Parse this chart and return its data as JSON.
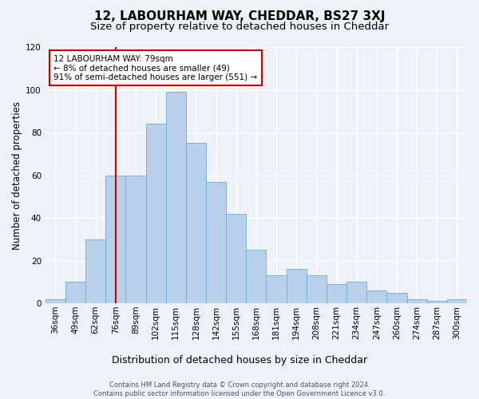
{
  "title": "12, LABOURHAM WAY, CHEDDAR, BS27 3XJ",
  "subtitle": "Size of property relative to detached houses in Cheddar",
  "xlabel_bottom": "Distribution of detached houses by size in Cheddar",
  "ylabel": "Number of detached properties",
  "categories": [
    "36sqm",
    "49sqm",
    "62sqm",
    "76sqm",
    "89sqm",
    "102sqm",
    "115sqm",
    "128sqm",
    "142sqm",
    "155sqm",
    "168sqm",
    "181sqm",
    "194sqm",
    "208sqm",
    "221sqm",
    "234sqm",
    "247sqm",
    "260sqm",
    "274sqm",
    "287sqm",
    "300sqm"
  ],
  "bar_heights": [
    2,
    10,
    30,
    60,
    60,
    84,
    99,
    75,
    57,
    42,
    25,
    13,
    16,
    13,
    9,
    10,
    6,
    5,
    2,
    1,
    2
  ],
  "bar_color": "#b8d0ea",
  "bar_edge_color": "#6aaed6",
  "vline_index": 3,
  "vline_color": "#cc0000",
  "annotation_text": "12 LABOURHAM WAY: 79sqm\n← 8% of detached houses are smaller (49)\n91% of semi-detached houses are larger (551) →",
  "annotation_box_color": "#ffffff",
  "annotation_box_edge": "#cc0000",
  "ylim": [
    0,
    120
  ],
  "yticks": [
    0,
    20,
    40,
    60,
    80,
    100,
    120
  ],
  "footer": "Contains HM Land Registry data © Crown copyright and database right 2024.\nContains public sector information licensed under the Open Government Licence v3.0.",
  "bg_color": "#eef2f8",
  "grid_color": "#ffffff",
  "title_fontsize": 11,
  "subtitle_fontsize": 9.5,
  "ylabel_fontsize": 8.5,
  "xlabel_fontsize": 9,
  "tick_fontsize": 7.5,
  "footer_fontsize": 6
}
